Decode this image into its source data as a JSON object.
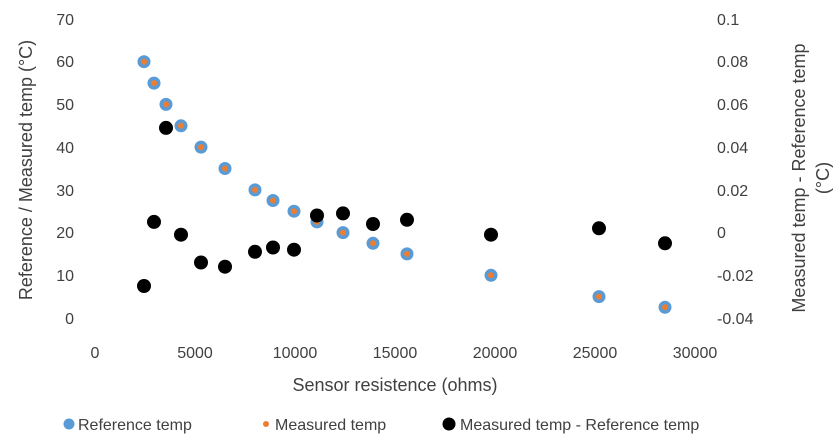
{
  "chart_data": {
    "type": "scatter",
    "title": "",
    "xlabel": "Sensor resistence (ohms)",
    "ylabel_left": "Reference / Measured temp (°C)",
    "ylabel_right_line1": "Measured temp - Reference temp",
    "ylabel_right_line2": "(°C)",
    "xlim": [
      0,
      30000
    ],
    "ylim_left": [
      0,
      70
    ],
    "ylim_right": [
      -0.04,
      0.1
    ],
    "x_ticks": [
      "0",
      "5000",
      "10000",
      "15000",
      "20000",
      "25000",
      "30000"
    ],
    "y_left_ticks": [
      "0",
      "10",
      "20",
      "30",
      "40",
      "50",
      "60",
      "70"
    ],
    "y_right_ticks": [
      "-0.04",
      "-0.02",
      "0",
      "0.02",
      "0.04",
      "0.06",
      "0.08",
      "0.1"
    ],
    "grid": "none",
    "legend_position": "bottom",
    "series": [
      {
        "name": "Reference temp",
        "axis": "left",
        "color": "#5b9bd5",
        "marker": "circle-large",
        "points": [
          [
            2450,
            60
          ],
          [
            2950,
            55
          ],
          [
            3550,
            50
          ],
          [
            4300,
            45
          ],
          [
            5300,
            40
          ],
          [
            6500,
            35
          ],
          [
            8000,
            30
          ],
          [
            8900,
            27.5
          ],
          [
            9950,
            25
          ],
          [
            11100,
            22.5
          ],
          [
            12400,
            20
          ],
          [
            13900,
            17.5
          ],
          [
            15600,
            15
          ],
          [
            19800,
            10
          ],
          [
            25200,
            5
          ],
          [
            28500,
            2.5
          ]
        ]
      },
      {
        "name": "Measured temp",
        "axis": "left",
        "color": "#ed7d31",
        "marker": "circle-small",
        "points": [
          [
            2450,
            60
          ],
          [
            2950,
            55
          ],
          [
            3550,
            50
          ],
          [
            4300,
            45
          ],
          [
            5300,
            40
          ],
          [
            6500,
            35
          ],
          [
            8000,
            30
          ],
          [
            8900,
            27.5
          ],
          [
            9950,
            25
          ],
          [
            11100,
            22.5
          ],
          [
            12400,
            20
          ],
          [
            13900,
            17.5
          ],
          [
            15600,
            15
          ],
          [
            19800,
            10
          ],
          [
            25200,
            5
          ],
          [
            28500,
            2.5
          ]
        ]
      },
      {
        "name": "Measured temp - Reference temp",
        "axis": "right",
        "color": "#000000",
        "marker": "circle-large",
        "points": [
          [
            2450,
            -0.025
          ],
          [
            2950,
            0.005
          ],
          [
            3550,
            0.049
          ],
          [
            4300,
            -0.001
          ],
          [
            5300,
            -0.014
          ],
          [
            6500,
            -0.016
          ],
          [
            8000,
            -0.009
          ],
          [
            8900,
            -0.007
          ],
          [
            9950,
            -0.008
          ],
          [
            11100,
            0.008
          ],
          [
            12400,
            0.009
          ],
          [
            13900,
            0.004
          ],
          [
            15600,
            0.006
          ],
          [
            19800,
            -0.001
          ],
          [
            25200,
            0.002
          ],
          [
            28500,
            -0.005
          ]
        ]
      }
    ]
  }
}
